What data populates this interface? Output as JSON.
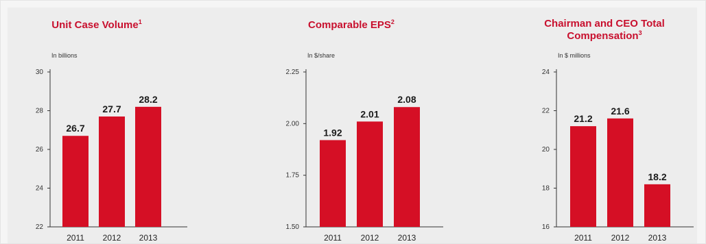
{
  "chart_data": [
    {
      "type": "bar",
      "title": "Unit Case Volume",
      "title_sup": "1",
      "subtitle": "In billions",
      "categories": [
        "2011",
        "2012",
        "2013"
      ],
      "values": [
        26.7,
        27.7,
        28.2
      ],
      "value_labels": [
        "26.7",
        "27.7",
        "28.2"
      ],
      "ylim": [
        22,
        30
      ],
      "yticks": [
        22,
        24,
        26,
        28,
        30
      ],
      "ytick_labels": [
        "22",
        "24",
        "26",
        "28",
        "30"
      ],
      "bar_color": "#d50f25",
      "grid": false
    },
    {
      "type": "bar",
      "title": "Comparable EPS",
      "title_sup": "2",
      "subtitle": "In $/share",
      "categories": [
        "2011",
        "2012",
        "2013"
      ],
      "values": [
        1.92,
        2.01,
        2.08
      ],
      "value_labels": [
        "1.92",
        "2.01",
        "2.08"
      ],
      "ylim": [
        1.5,
        2.25
      ],
      "yticks": [
        1.5,
        1.75,
        2.0,
        2.25
      ],
      "ytick_labels": [
        "1.50",
        "1.75",
        "2.00",
        "2.25"
      ],
      "bar_color": "#d50f25",
      "grid": false
    },
    {
      "type": "bar",
      "title_lines": [
        "Chairman and CEO Total",
        "Compensation"
      ],
      "title_sup": "3",
      "subtitle": "In $ millions",
      "categories": [
        "2011",
        "2012",
        "2013"
      ],
      "values": [
        21.2,
        21.6,
        18.2
      ],
      "value_labels": [
        "21.2",
        "21.6",
        "18.2"
      ],
      "ylim": [
        16,
        24
      ],
      "yticks": [
        16,
        18,
        20,
        22,
        24
      ],
      "ytick_labels": [
        "16",
        "18",
        "20",
        "22",
        "24"
      ],
      "bar_color": "#d50f25",
      "grid": false
    }
  ]
}
